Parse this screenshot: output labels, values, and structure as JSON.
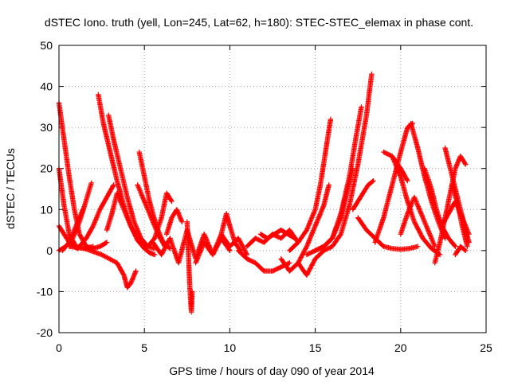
{
  "chart_data": {
    "type": "scatter",
    "title": "dSTEC Iono. truth (yell, Lon=245, Lat=62, h=180): STEC-STEC_elemax in phase cont.",
    "xlabel": "GPS time / hours of day 090 of year 2014",
    "ylabel": "dSTEC  / TECUs",
    "xlim": [
      0,
      25
    ],
    "ylim": [
      -20,
      50
    ],
    "x_ticks": [
      0,
      5,
      10,
      15,
      20,
      25
    ],
    "x_tick_labels": [
      "0",
      "5",
      "10",
      "15",
      "20",
      "25"
    ],
    "y_ticks": [
      -20,
      -10,
      0,
      10,
      20,
      30,
      40,
      50
    ],
    "y_tick_labels": [
      "-20",
      "-10",
      "0",
      "10",
      "20",
      "30",
      "40",
      "50"
    ],
    "grid": true,
    "marker": "plus",
    "color": "#ff0000",
    "series": [
      {
        "x": [
          0.0,
          0.3,
          0.6,
          0.9,
          1.2,
          1.6,
          2.0,
          2.4,
          2.8
        ],
        "y": [
          36,
          27,
          18,
          10,
          4,
          1,
          0.5,
          1,
          2
        ]
      },
      {
        "x": [
          0.0,
          0.3,
          0.6,
          1.0,
          1.5,
          2.0
        ],
        "y": [
          20,
          11,
          4,
          1,
          0.5,
          1
        ]
      },
      {
        "x": [
          0.0,
          0.3,
          0.6,
          0.9,
          1.1
        ],
        "y": [
          6,
          4,
          2,
          1,
          0.5
        ]
      },
      {
        "x": [
          0.0,
          0.4,
          0.8,
          1.2,
          1.5,
          1.9
        ],
        "y": [
          0,
          1,
          3,
          7,
          11,
          16.5
        ]
      },
      {
        "x": [
          0.2,
          0.6,
          1.0,
          1.4
        ],
        "y": [
          0,
          2,
          6,
          10
        ]
      },
      {
        "x": [
          0.6,
          1.5,
          2.5,
          3.4,
          3.8,
          4.0,
          4.2,
          4.5
        ],
        "y": [
          1,
          0.5,
          -1,
          -3,
          -6,
          -9,
          -8,
          -5
        ]
      },
      {
        "x": [
          2.3,
          2.6,
          3.0,
          3.4,
          3.8,
          4.2,
          4.6,
          5.0,
          5.3,
          5.6
        ],
        "y": [
          38,
          31,
          24,
          17,
          11,
          6,
          2.5,
          0.5,
          -0.5,
          -1
        ]
      },
      {
        "x": [
          2.9,
          3.2,
          3.6,
          4.0,
          4.4,
          4.8,
          5.2,
          5.6
        ],
        "y": [
          33,
          27,
          20,
          13,
          7,
          3,
          1,
          0.5
        ]
      },
      {
        "x": [
          1.2,
          1.6,
          2.0,
          2.4,
          2.8,
          3.2
        ],
        "y": [
          1,
          3,
          6,
          10,
          13,
          16
        ]
      },
      {
        "x": [
          2.8,
          3.1,
          3.4,
          3.8,
          4.2,
          4.6,
          5.0
        ],
        "y": [
          5,
          9,
          14,
          10,
          6,
          3,
          1
        ]
      },
      {
        "x": [
          4.7,
          5.0,
          5.3,
          5.7,
          6.1,
          6.5
        ],
        "y": [
          24,
          18,
          12,
          6,
          2,
          0.5
        ]
      },
      {
        "x": [
          4.6,
          5.0,
          5.4,
          5.8,
          6.2
        ],
        "y": [
          16,
          12,
          8,
          4,
          1
        ]
      },
      {
        "x": [
          5.2,
          5.6,
          6.0,
          6.3,
          6.6
        ],
        "y": [
          1,
          3,
          8,
          14,
          12
        ]
      },
      {
        "x": [
          5.5,
          6.0,
          6.5,
          7.0,
          7.5,
          8.0,
          8.5,
          9.0,
          9.5,
          10.0
        ],
        "y": [
          2,
          -1,
          3,
          -3,
          5,
          -2,
          4,
          -1,
          3,
          0
        ]
      },
      {
        "x": [
          6.3,
          6.6,
          6.9,
          7.2
        ],
        "y": [
          4,
          8,
          10,
          7
        ]
      },
      {
        "x": [
          7.5,
          7.55,
          7.6,
          7.65,
          7.7,
          7.75,
          7.8
        ],
        "y": [
          7,
          2,
          -3,
          -8,
          -12,
          -15,
          -10
        ]
      },
      {
        "x": [
          8.0,
          8.5,
          9.0,
          9.5,
          10.0,
          10.5,
          11.0
        ],
        "y": [
          -3,
          2,
          -1,
          4,
          1,
          3,
          -1
        ]
      },
      {
        "x": [
          9.5,
          9.8,
          10.0,
          10.3,
          10.6
        ],
        "y": [
          4,
          9,
          6,
          2,
          0
        ]
      },
      {
        "x": [
          10.5,
          11.0,
          11.5,
          12.0,
          12.5,
          13.0,
          13.5
        ],
        "y": [
          0,
          -2,
          -3,
          -5,
          -5,
          -4,
          -3
        ]
      },
      {
        "x": [
          11.0,
          11.5,
          12.0,
          12.5,
          13.0,
          13.5,
          14.0
        ],
        "y": [
          1,
          3,
          2,
          4,
          3,
          5,
          2
        ]
      },
      {
        "x": [
          11.8,
          12.2,
          12.6,
          13.0,
          13.4,
          13.8
        ],
        "y": [
          4,
          3,
          4,
          5,
          4,
          3
        ]
      },
      {
        "x": [
          13.0,
          13.5,
          14.0,
          14.5,
          15.0,
          15.5
        ],
        "y": [
          -2,
          -5,
          -3,
          -6,
          -2,
          0
        ]
      },
      {
        "x": [
          13.5,
          14.0,
          14.5,
          15.0,
          15.3,
          15.6,
          15.9
        ],
        "y": [
          0,
          2,
          5,
          10,
          16,
          24,
          32
        ]
      },
      {
        "x": [
          14.0,
          14.5,
          15.0,
          15.5,
          15.8
        ],
        "y": [
          -3,
          1,
          6,
          11,
          16
        ]
      },
      {
        "x": [
          14.5,
          15.0,
          15.5,
          16.0,
          16.5,
          17.0,
          17.4,
          17.7
        ],
        "y": [
          -1,
          0,
          1,
          3,
          9,
          18,
          28,
          35
        ]
      },
      {
        "x": [
          15.0,
          15.5,
          16.0,
          16.5,
          16.9,
          17.2
        ],
        "y": [
          0,
          1,
          3,
          8,
          15,
          20
        ]
      },
      {
        "x": [
          15.5,
          16.0,
          16.5,
          17.0,
          17.5,
          18.0,
          18.3
        ],
        "y": [
          0,
          1,
          4,
          11,
          21,
          33,
          43
        ]
      },
      {
        "x": [
          17.2,
          17.5,
          17.8,
          18.1,
          18.4
        ],
        "y": [
          10,
          12,
          14,
          16,
          17
        ]
      },
      {
        "x": [
          17.5,
          18.0,
          18.5,
          19.0,
          19.5,
          20.0,
          20.5,
          21.0
        ],
        "y": [
          8,
          5,
          3,
          1,
          0.5,
          0.3,
          0.5,
          1
        ]
      },
      {
        "x": [
          18.5,
          19.0,
          19.5,
          20.0,
          20.4,
          20.7
        ],
        "y": [
          2,
          8,
          16,
          24,
          30,
          31
        ]
      },
      {
        "x": [
          19.0,
          19.5,
          20.0,
          20.4
        ],
        "y": [
          24,
          23,
          20,
          17
        ]
      },
      {
        "x": [
          19.5,
          20.0,
          20.4,
          20.8,
          21.3,
          21.8,
          22.3
        ],
        "y": [
          23,
          18,
          12,
          7,
          3,
          0.5,
          -1
        ]
      },
      {
        "x": [
          20.0,
          20.4,
          20.8,
          21.2,
          21.6,
          22.0
        ],
        "y": [
          4,
          9,
          13,
          9,
          5,
          1
        ]
      },
      {
        "x": [
          20.6,
          21.0,
          21.4,
          21.8,
          22.2,
          22.6
        ],
        "y": [
          31,
          25,
          18,
          12,
          7,
          3
        ]
      },
      {
        "x": [
          21.4,
          21.8,
          22.1,
          22.4,
          22.8,
          23.2
        ],
        "y": [
          20,
          15,
          10,
          6,
          3,
          1
        ]
      },
      {
        "x": [
          22.0,
          22.3,
          22.6,
          22.9,
          23.2,
          23.5,
          23.8
        ],
        "y": [
          -3,
          2,
          8,
          14,
          20,
          23,
          21
        ]
      },
      {
        "x": [
          22.6,
          22.9,
          23.2,
          23.5,
          23.8,
          24.0
        ],
        "y": [
          25,
          20,
          15,
          10,
          5,
          2
        ]
      },
      {
        "x": [
          23.0,
          23.3,
          23.6,
          23.9
        ],
        "y": [
          16,
          12,
          6,
          1
        ]
      },
      {
        "x": [
          22.4,
          22.8,
          23.2,
          23.6,
          24.0
        ],
        "y": [
          6,
          9,
          12,
          8,
          4
        ]
      },
      {
        "x": [
          23.2,
          23.5,
          23.8
        ],
        "y": [
          -1,
          1,
          0
        ]
      }
    ]
  }
}
